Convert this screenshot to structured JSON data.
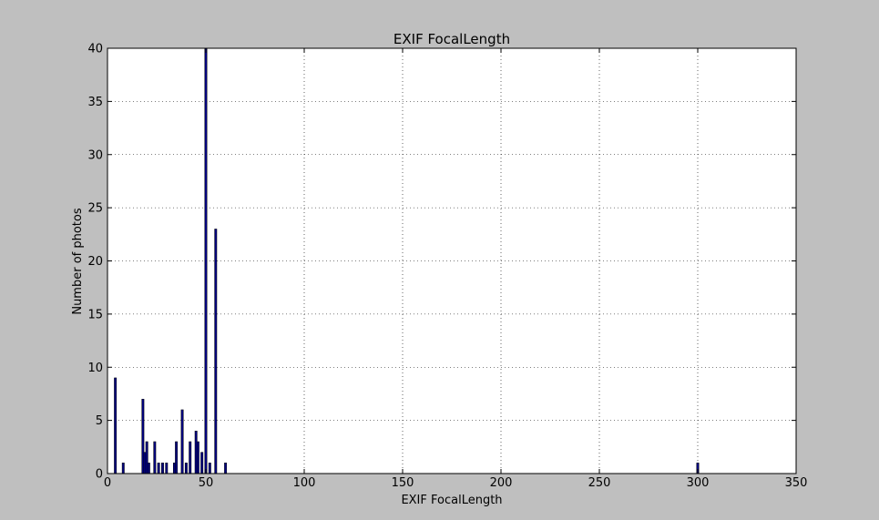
{
  "chart_data": {
    "type": "bar",
    "title": "EXIF FocalLength",
    "xlabel": "EXIF FocalLength",
    "ylabel": "Number of photos",
    "xlim": [
      0,
      350
    ],
    "ylim": [
      0,
      40
    ],
    "x_ticks": [
      0,
      50,
      100,
      150,
      200,
      250,
      300,
      350
    ],
    "y_ticks": [
      0,
      5,
      10,
      15,
      20,
      25,
      30,
      35,
      40
    ],
    "grid": true,
    "bar_color": "#000080",
    "x": [
      4,
      8,
      18,
      19,
      20,
      21,
      24,
      26,
      28,
      30,
      34,
      35,
      38,
      40,
      42,
      45,
      46,
      48,
      50,
      52,
      55,
      60,
      300
    ],
    "values": [
      9,
      1,
      7,
      2,
      3,
      1,
      3,
      1,
      1,
      1,
      1,
      3,
      6,
      1,
      3,
      4,
      3,
      2,
      40,
      1,
      23,
      1,
      1
    ]
  }
}
